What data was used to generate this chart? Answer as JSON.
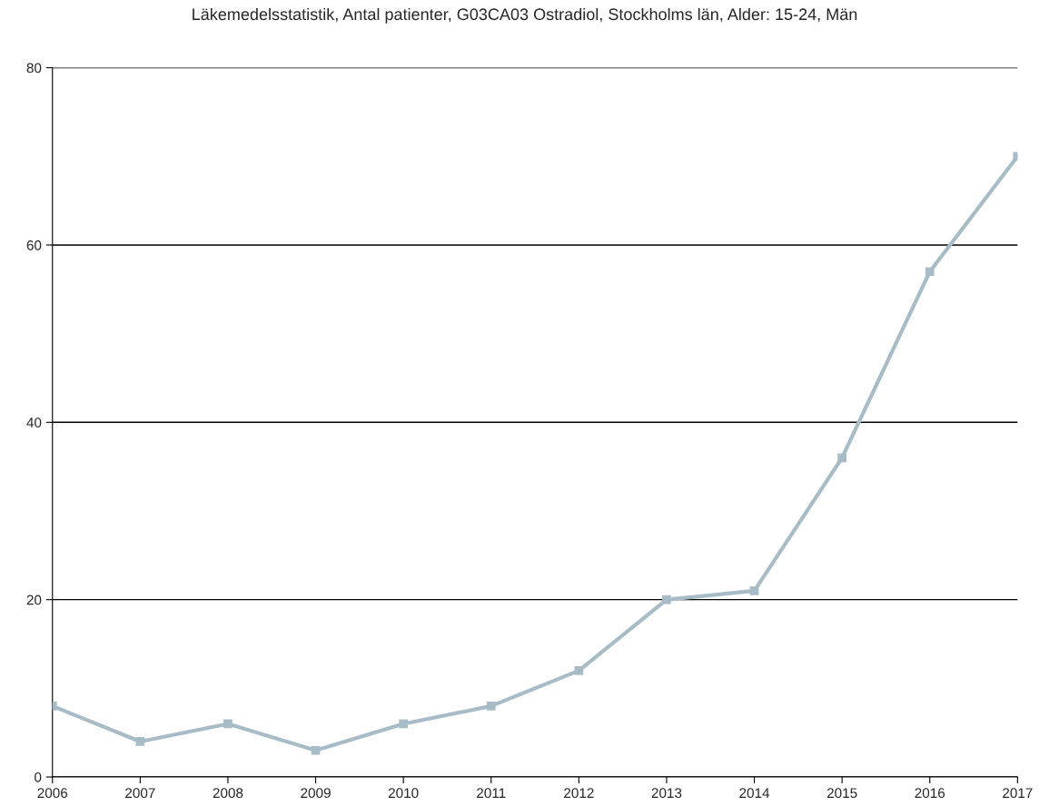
{
  "chart_data": {
    "type": "line",
    "title": "Läkemedelsstatistik, Antal patienter, G03CA03 Ostradiol, Stockholms län, Alder: 15-24, Män",
    "x": [
      2006,
      2007,
      2008,
      2009,
      2010,
      2011,
      2012,
      2013,
      2014,
      2015,
      2016,
      2017
    ],
    "series": [
      {
        "color": "#a7bcc7",
        "values": [
          8,
          4,
          6,
          3,
          6,
          8,
          12,
          20,
          21,
          36,
          57,
          70
        ]
      }
    ],
    "xlim": [
      2006,
      2017
    ],
    "xticks": [
      2006,
      2007,
      2008,
      2009,
      2010,
      2011,
      2012,
      2013,
      2014,
      2015,
      2016,
      2017
    ],
    "ylim": [
      0,
      80
    ],
    "yticks": [
      0,
      20,
      40,
      60,
      80
    ],
    "grid": "y",
    "marker": "square",
    "line_style": "solid"
  }
}
